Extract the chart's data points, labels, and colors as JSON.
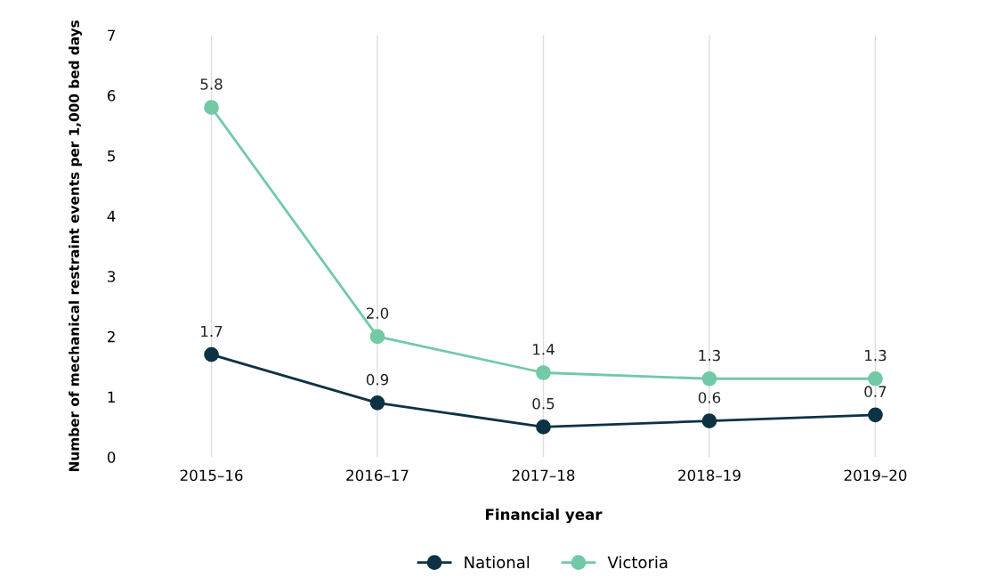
{
  "chart_data": {
    "type": "line",
    "xlabel": "Financial year",
    "ylabel": "Number of mechanical restraint events per 1,000 bed days",
    "categories": [
      "2015–16",
      "2016–17",
      "2017–18",
      "2018–19",
      "2019–20"
    ],
    "series": [
      {
        "name": "National",
        "color": "#0e3245",
        "values": [
          1.7,
          0.9,
          0.5,
          0.6,
          0.7
        ],
        "value_labels": [
          "1.7",
          "0.9",
          "0.5",
          "0.6",
          "0.7"
        ]
      },
      {
        "name": "Victoria",
        "color": "#72c9a6",
        "values": [
          5.8,
          2.0,
          1.4,
          1.3,
          1.3
        ],
        "value_labels": [
          "5.8",
          "2.0",
          "1.4",
          "1.3",
          "1.3"
        ]
      }
    ],
    "ylim": [
      0,
      7
    ],
    "yticks": [
      0,
      1,
      2,
      3,
      4,
      5,
      6,
      7
    ],
    "grid": "x",
    "legend": "bottom",
    "marker": "circle",
    "line_style": "solid"
  }
}
